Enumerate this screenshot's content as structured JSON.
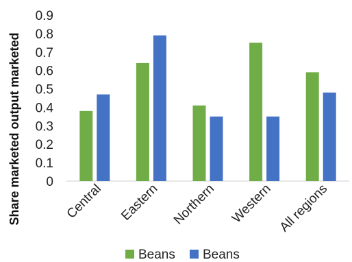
{
  "chart_data": {
    "type": "bar",
    "categories": [
      "Central",
      "Eastern",
      "Northern",
      "Western",
      "All regions"
    ],
    "series": [
      {
        "name": "Beans",
        "color": "#70ad47",
        "values": [
          0.38,
          0.64,
          0.41,
          0.75,
          0.59
        ]
      },
      {
        "name": "Beans",
        "color": "#4472c4",
        "values": [
          0.47,
          0.79,
          0.35,
          0.35,
          0.48
        ]
      }
    ],
    "title": "",
    "xlabel": "",
    "ylabel": "Share marketed output  marketed",
    "ylim": [
      0,
      0.9
    ],
    "yticks": [
      "0",
      "0.1",
      "0.2",
      "0.3",
      "0.4",
      "0.5",
      "0.6",
      "0.7",
      "0.8",
      "0.9"
    ],
    "grid": false,
    "legend_position": "bottom"
  }
}
